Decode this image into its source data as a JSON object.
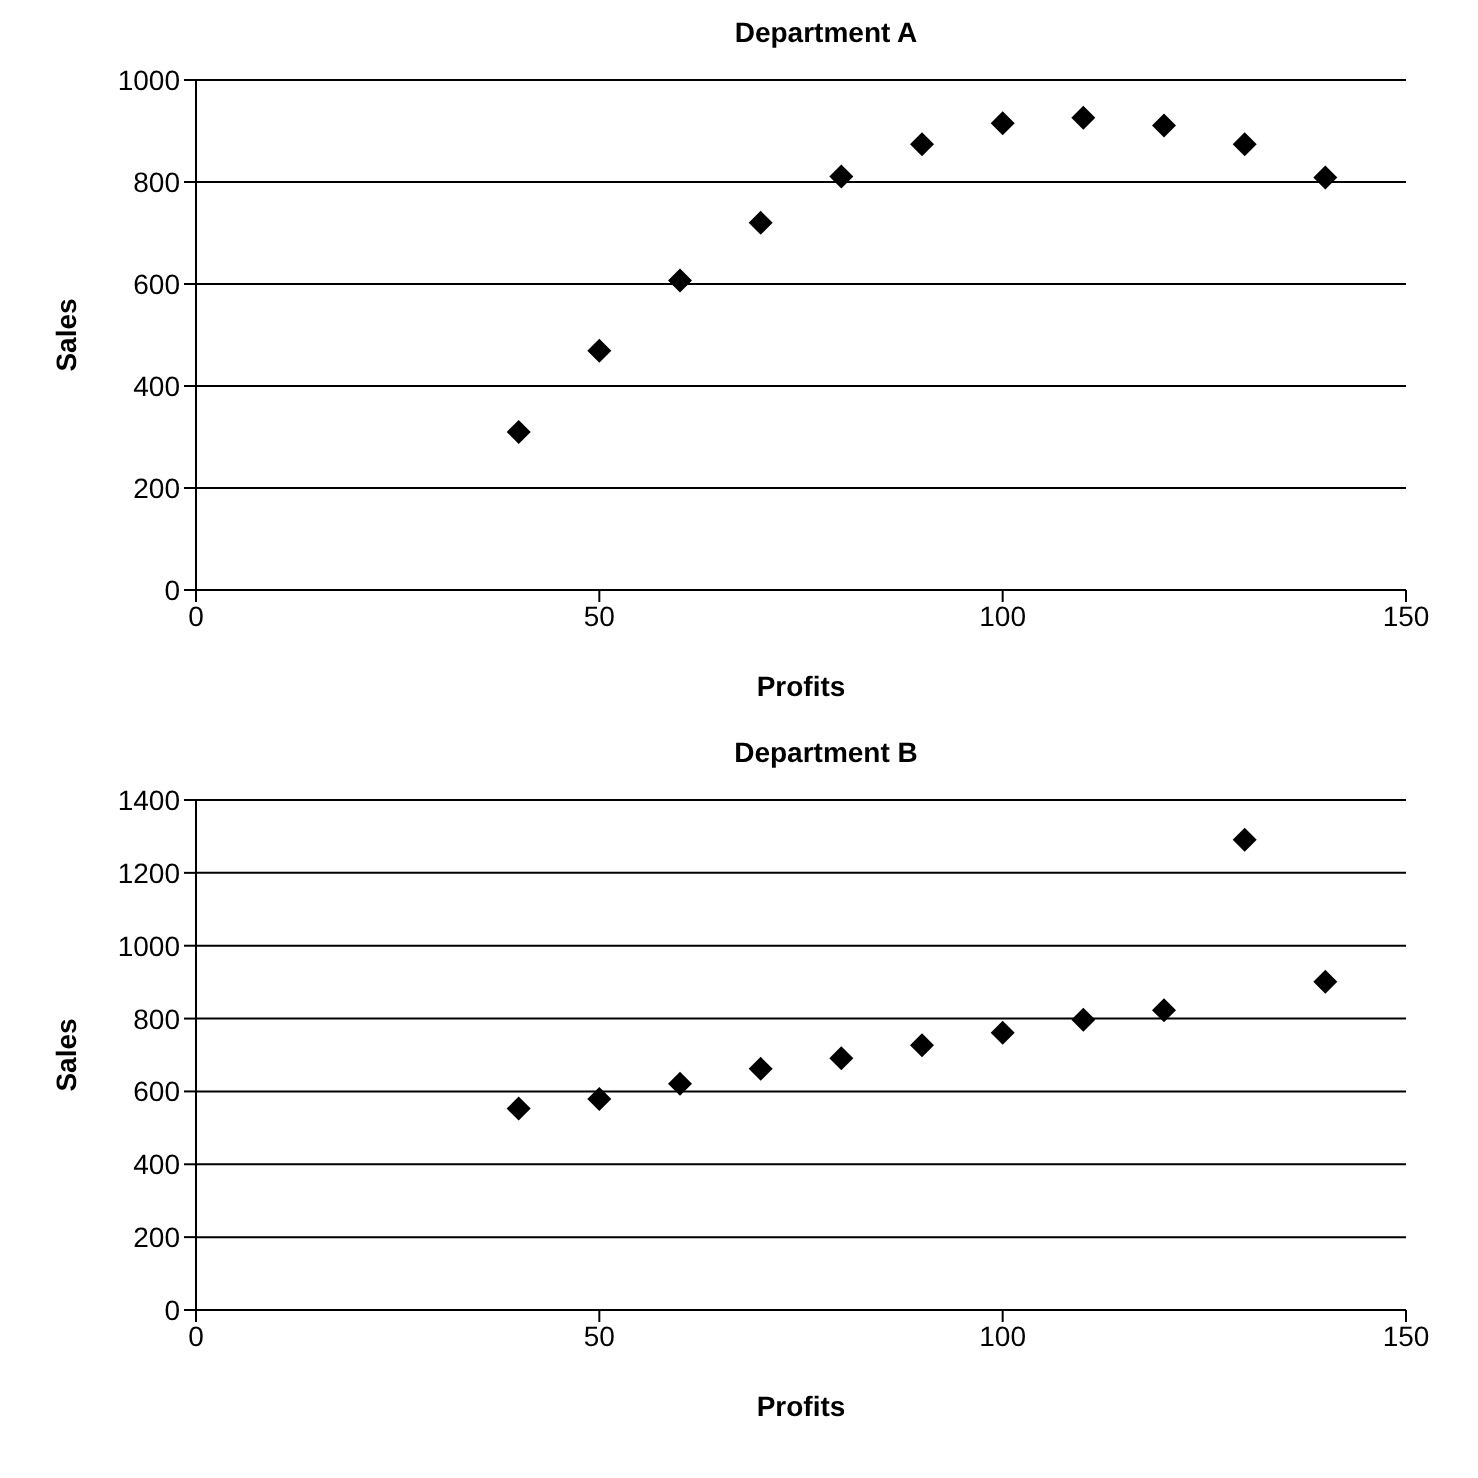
{
  "chart_data": [
    {
      "type": "scatter",
      "title": "Department A",
      "xlabel": "Profits",
      "ylabel": "Sales",
      "x": [
        40,
        50,
        60,
        70,
        80,
        90,
        100,
        110,
        120,
        130,
        140
      ],
      "values": [
        310,
        469,
        607,
        720,
        811,
        874,
        915,
        926,
        911,
        874,
        809
      ],
      "color": "#000000",
      "marker": "diamond",
      "xlim": [
        0,
        150
      ],
      "xticks": [
        0,
        50,
        100,
        150
      ],
      "ylim": [
        0,
        1000
      ],
      "yticks": [
        0,
        200,
        400,
        600,
        800,
        1000
      ],
      "grid": "y",
      "legend": false
    },
    {
      "type": "scatter",
      "title": "Department B",
      "xlabel": "Profits",
      "ylabel": "Sales",
      "x": [
        40,
        50,
        60,
        70,
        80,
        90,
        100,
        110,
        120,
        130,
        140
      ],
      "values": [
        553,
        579,
        621,
        662,
        691,
        727,
        761,
        797,
        823,
        1291,
        901
      ],
      "color": "#000000",
      "marker": "diamond",
      "xlim": [
        0,
        150
      ],
      "xticks": [
        0,
        50,
        100,
        150
      ],
      "ylim": [
        0,
        1400
      ],
      "yticks": [
        0,
        200,
        400,
        600,
        800,
        1000,
        1200,
        1400
      ],
      "grid": "y",
      "legend": false
    }
  ]
}
